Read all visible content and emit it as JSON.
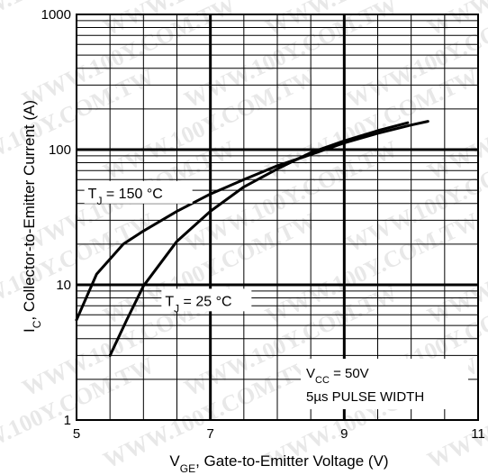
{
  "watermark": "WWW.100Y.COM.TW",
  "chart_data": {
    "type": "line",
    "xlabel": {
      "main": "V",
      "sub": "GE",
      "rest": ", Gate-to-Emitter Voltage (V)"
    },
    "ylabel": {
      "main": "I",
      "sub": "C",
      "rest": ",  Collector-to-Emitter Current (A)"
    },
    "xlim": [
      5,
      11
    ],
    "ylim": [
      1,
      1000
    ],
    "yscale": "log",
    "grid": true,
    "x_ticks": [
      {
        "value": 5,
        "label": "5"
      },
      {
        "value": 7,
        "label": "7"
      },
      {
        "value": 9,
        "label": "9"
      },
      {
        "value": 11,
        "label": "11"
      }
    ],
    "y_ticks": [
      {
        "value": 1,
        "label": "1"
      },
      {
        "value": 10,
        "label": "10"
      },
      {
        "value": 100,
        "label": "100"
      },
      {
        "value": 1000,
        "label": "1000"
      }
    ],
    "series": [
      {
        "label": {
          "main": "T",
          "sub": "J",
          "rest": " = 150 °C"
        },
        "label_anchor": {
          "x": 7.0,
          "y": 48
        },
        "points": [
          {
            "x": 5.0,
            "y": 5.5
          },
          {
            "x": 5.3,
            "y": 12
          },
          {
            "x": 5.7,
            "y": 20
          },
          {
            "x": 6.0,
            "y": 25
          },
          {
            "x": 6.5,
            "y": 35
          },
          {
            "x": 7.0,
            "y": 47
          },
          {
            "x": 7.5,
            "y": 60
          },
          {
            "x": 8.0,
            "y": 76
          },
          {
            "x": 8.5,
            "y": 92
          },
          {
            "x": 9.0,
            "y": 112
          },
          {
            "x": 9.5,
            "y": 132
          },
          {
            "x": 10.0,
            "y": 152
          },
          {
            "x": 10.25,
            "y": 162
          }
        ]
      },
      {
        "label": {
          "main": "T",
          "sub": "J",
          "rest": " = 25 °C"
        },
        "label_anchor": {
          "x": 6.0,
          "y": 9.5
        },
        "points": [
          {
            "x": 5.5,
            "y": 3.0
          },
          {
            "x": 5.75,
            "y": 5.5
          },
          {
            "x": 6.0,
            "y": 9.8
          },
          {
            "x": 6.5,
            "y": 21
          },
          {
            "x": 7.0,
            "y": 35
          },
          {
            "x": 7.5,
            "y": 53
          },
          {
            "x": 8.0,
            "y": 72
          },
          {
            "x": 8.5,
            "y": 95
          },
          {
            "x": 9.0,
            "y": 116
          },
          {
            "x": 9.5,
            "y": 138
          },
          {
            "x": 9.95,
            "y": 158
          }
        ]
      }
    ],
    "annotations": [
      {
        "main": "V",
        "sub": "CC",
        "rest": " = 50V"
      },
      {
        "text": "5µs PULSE WIDTH"
      }
    ]
  }
}
